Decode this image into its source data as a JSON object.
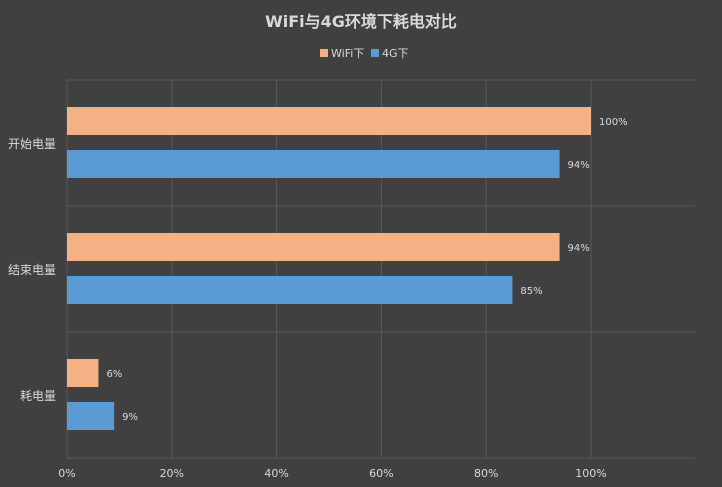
{
  "chart_data": {
    "type": "bar",
    "orientation": "horizontal",
    "title": "WiFi与4G环境下耗电对比",
    "categories": [
      "开始电量",
      "结束电量",
      "耗电量"
    ],
    "series": [
      {
        "name": "WiFi下",
        "values": [
          100,
          94,
          6
        ],
        "labels": [
          "100%",
          "94%",
          "6%"
        ],
        "color": "#F4B183"
      },
      {
        "name": "4G下",
        "values": [
          94,
          85,
          9
        ],
        "labels": [
          "94%",
          "85%",
          "9%"
        ],
        "color": "#5B9BD5"
      }
    ],
    "xlim": [
      0,
      100
    ],
    "xticks": [
      0,
      20,
      40,
      60,
      80,
      100
    ],
    "xtick_labels": [
      "0%",
      "20%",
      "40%",
      "60%",
      "80%",
      "100%"
    ],
    "legend_position": "top-center",
    "grid": true
  },
  "colors": {
    "background": "#404040",
    "gridline": "#595959",
    "text": "#D9D9D9",
    "title": "#D9D9D9"
  }
}
